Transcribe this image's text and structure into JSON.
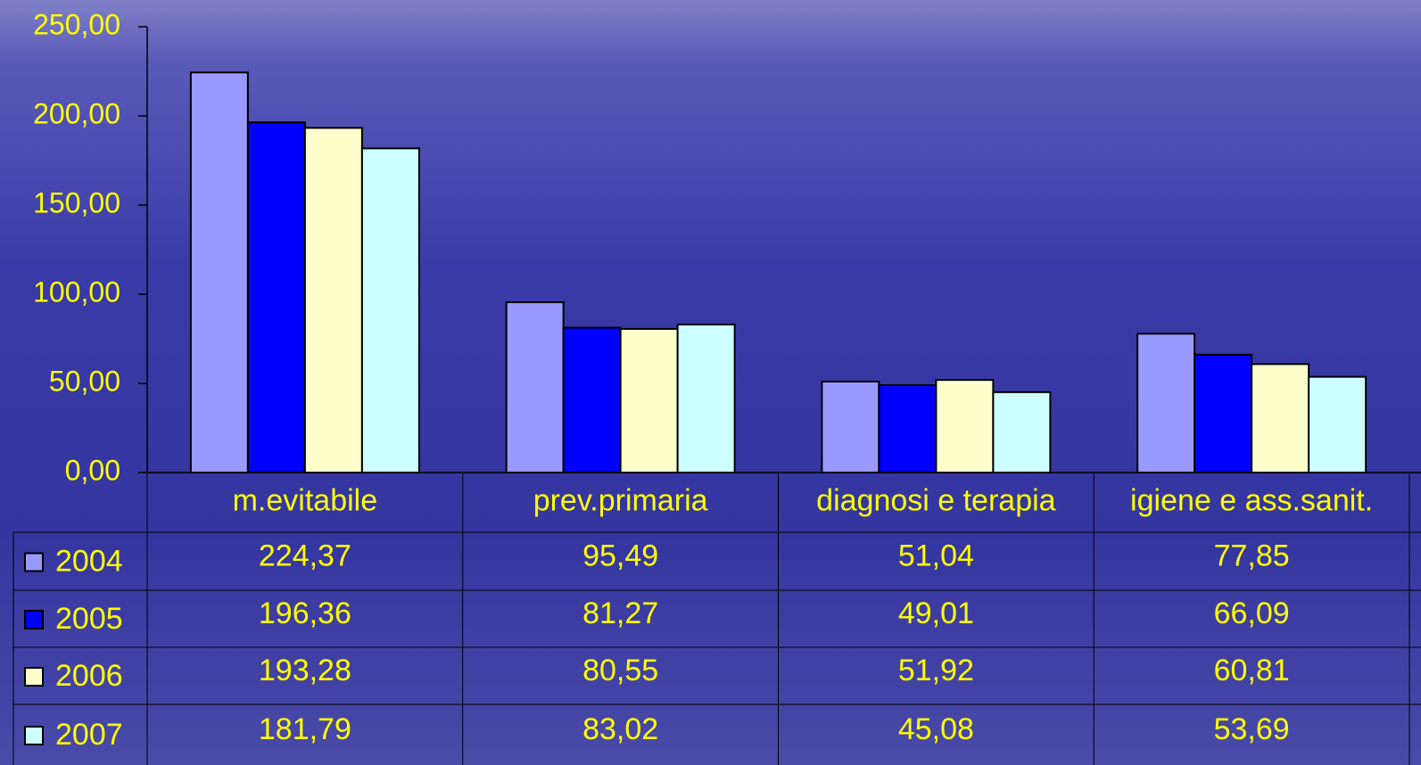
{
  "chart_data": {
    "type": "bar",
    "categories": [
      "m.evitabile",
      "prev.primaria",
      "diagnosi e terapia",
      "igiene e ass.sanit."
    ],
    "series": [
      {
        "name": "2004",
        "color": "#9999ff",
        "values": [
          224.37,
          95.49,
          51.04,
          77.85
        ],
        "value_labels": [
          "224,37",
          "95,49",
          "51,04",
          "77,85"
        ]
      },
      {
        "name": "2005",
        "color": "#0000ff",
        "values": [
          196.36,
          81.27,
          49.01,
          66.09
        ],
        "value_labels": [
          "196,36",
          "81,27",
          "49,01",
          "66,09"
        ]
      },
      {
        "name": "2006",
        "color": "#ffffcc",
        "values": [
          193.28,
          80.55,
          51.92,
          60.81
        ],
        "value_labels": [
          "193,28",
          "80,55",
          "51,92",
          "60,81"
        ]
      },
      {
        "name": "2007",
        "color": "#ccffff",
        "values": [
          181.79,
          83.02,
          45.08,
          53.69
        ],
        "value_labels": [
          "181,79",
          "83,02",
          "45,08",
          "53,69"
        ]
      }
    ],
    "ylim": [
      0,
      250
    ],
    "yticks": [
      {
        "value": 0,
        "label": "0,00"
      },
      {
        "value": 50,
        "label": "50,00"
      },
      {
        "value": 100,
        "label": "100,00"
      },
      {
        "value": 150,
        "label": "150,00"
      },
      {
        "value": 200,
        "label": "200,00"
      },
      {
        "value": 250,
        "label": "250,00"
      }
    ]
  }
}
